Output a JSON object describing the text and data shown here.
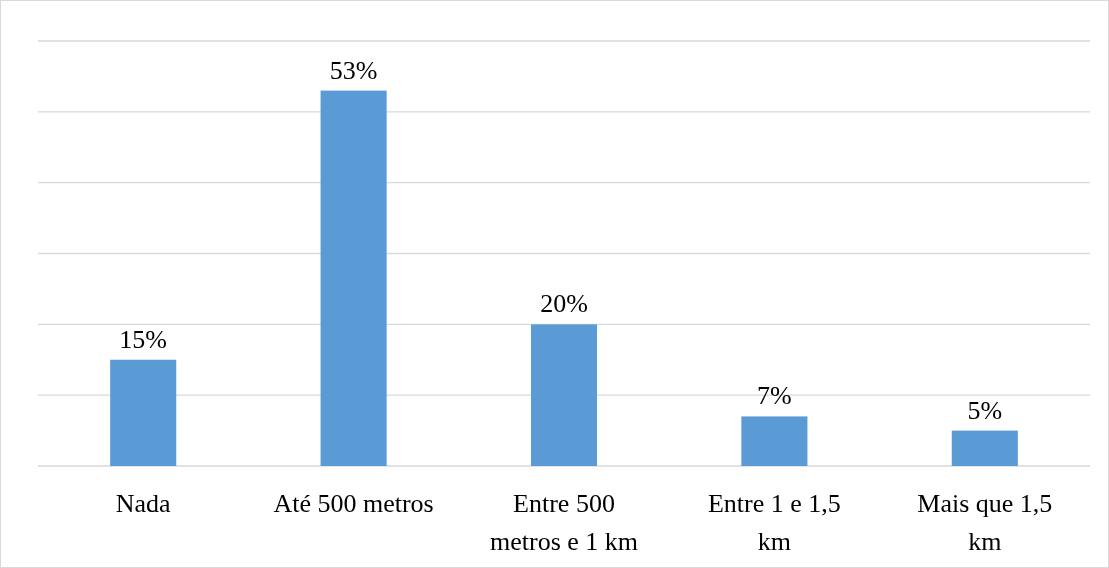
{
  "chart_data": {
    "type": "bar",
    "categories": [
      "Nada",
      "Até 500 metros",
      "Entre 500 metros e 1 km",
      "Entre 1 e 1,5 km",
      "Mais que 1,5 km"
    ],
    "values": [
      15,
      53,
      20,
      7,
      5
    ],
    "value_labels": [
      "15%",
      "53%",
      "20%",
      "7%",
      "5%"
    ],
    "color": "#5b9bd5",
    "ylim": [
      0,
      60
    ],
    "yticks": [
      {
        "value": 0,
        "label": null
      },
      {
        "value": 10,
        "label": null
      },
      {
        "value": 20,
        "label": null
      },
      {
        "value": 30,
        "label": null
      },
      {
        "value": 40,
        "label": null
      },
      {
        "value": 50,
        "label": null
      },
      {
        "value": 60,
        "label": null
      }
    ],
    "grid": "y",
    "tick_labels": "x"
  }
}
